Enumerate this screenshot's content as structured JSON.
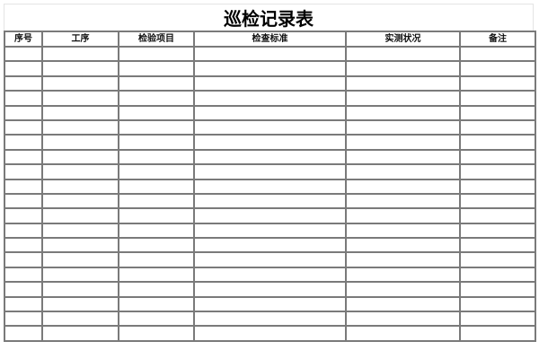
{
  "title": "巡检记录表",
  "columns": [
    "序号",
    "工序",
    "检验项目",
    "检查标准",
    "实测状况",
    "备注"
  ],
  "row_count": 20,
  "colors": {
    "border": "#7a7a7a",
    "text": "#000000"
  }
}
